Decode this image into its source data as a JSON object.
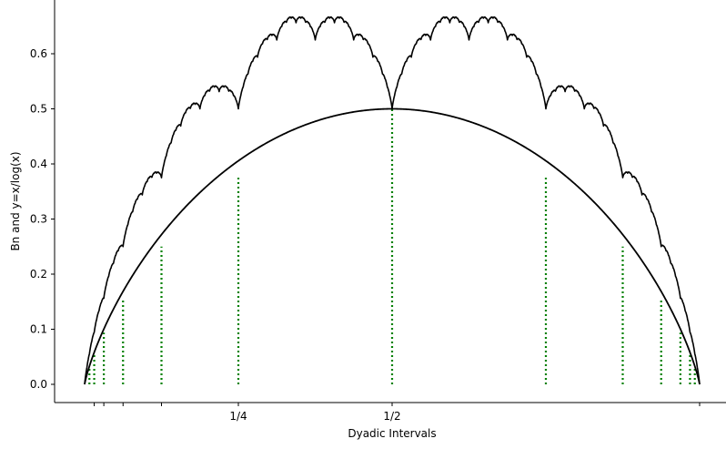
{
  "chart_data": {
    "type": "line",
    "xlabel": "Dyadic Intervals",
    "ylabel": "Bn and y=x/log(x)",
    "xlim": [
      0,
      1
    ],
    "ylim": [
      -0.033,
      0.67
    ],
    "yticks": [
      0.0,
      0.1,
      0.2,
      0.3,
      0.4,
      0.5,
      0.6
    ],
    "ytick_labels": [
      "0.0",
      "0.1",
      "0.2",
      "0.3",
      "0.4",
      "0.5",
      "0.6"
    ],
    "xticks": [
      0.015625,
      0.03125,
      0.0625,
      0.125,
      0.25,
      0.5,
      1.0
    ],
    "xtick_labels": [
      "",
      "",
      "",
      "",
      "1/4",
      "1/2",
      ""
    ],
    "blancmange_depth": 12,
    "series": [
      {
        "curve": "blancmange (Takagi) curve T(x), dyadic sum of tent maps",
        "color": "#000000"
      },
      {
        "curve": "smooth curve -x*log2(x) - (1-x)*log2(1-x) scaled by 1/2",
        "color": "#000000"
      }
    ],
    "dyadic_lines": {
      "x": [
        0.0078125,
        0.015625,
        0.03125,
        0.0625,
        0.125,
        0.25,
        0.5,
        0.75,
        0.875,
        0.9375,
        0.96875,
        0.984375,
        0.9921875
      ],
      "y": [
        0.0312,
        0.0547,
        0.0938,
        0.1563,
        0.25,
        0.375,
        0.5,
        0.375,
        0.25,
        0.1563,
        0.0938,
        0.0547,
        0.0312
      ],
      "color": "#008000",
      "style": "dotted"
    },
    "spines": {
      "left": true,
      "bottom": true,
      "top": false,
      "right": false
    }
  }
}
